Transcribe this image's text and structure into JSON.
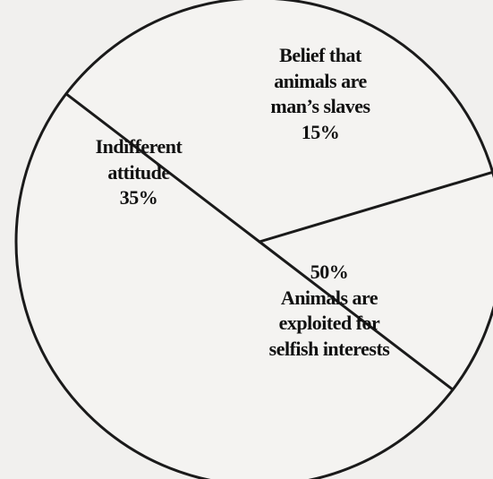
{
  "chart_data": {
    "type": "pie",
    "slices": [
      {
        "value": 15,
        "text_lines": [
          "Belief that",
          "animals are",
          "man’s slaves",
          "15%"
        ]
      },
      {
        "value": 50,
        "text_lines": [
          "50%",
          "Animals are",
          "exploited for",
          "selfish interests"
        ]
      },
      {
        "value": 35,
        "text_lines": [
          "Indifferent",
          "attitude",
          "35%"
        ]
      }
    ]
  }
}
